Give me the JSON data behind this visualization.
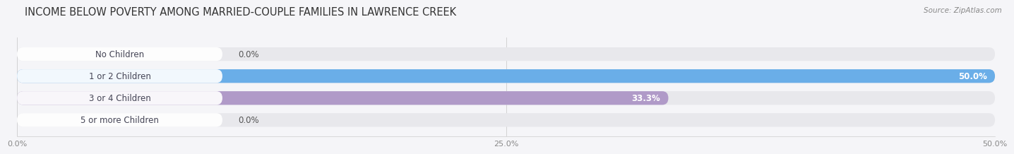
{
  "title": "INCOME BELOW POVERTY AMONG MARRIED-COUPLE FAMILIES IN LAWRENCE CREEK",
  "source": "Source: ZipAtlas.com",
  "categories": [
    "No Children",
    "1 or 2 Children",
    "3 or 4 Children",
    "5 or more Children"
  ],
  "values": [
    0.0,
    50.0,
    33.3,
    0.0
  ],
  "bar_colors": [
    "#e8a0a8",
    "#6aaee8",
    "#b09ac8",
    "#7ecece"
  ],
  "background_track_color": "#e8e8ec",
  "xlim": [
    0,
    50.0
  ],
  "xticks": [
    0.0,
    25.0,
    50.0
  ],
  "xtick_labels": [
    "0.0%",
    "25.0%",
    "50.0%"
  ],
  "title_fontsize": 10.5,
  "bar_height": 0.62,
  "bar_label_fontsize": 8.5,
  "category_fontsize": 8.5,
  "fig_width": 14.06,
  "fig_height": 2.33,
  "value_label_inside_color": "#ffffff",
  "value_label_outside_color": "#555555",
  "label_tab_color": "#ffffff",
  "label_tab_alpha": 0.92,
  "bg_color": "#f5f5f8"
}
